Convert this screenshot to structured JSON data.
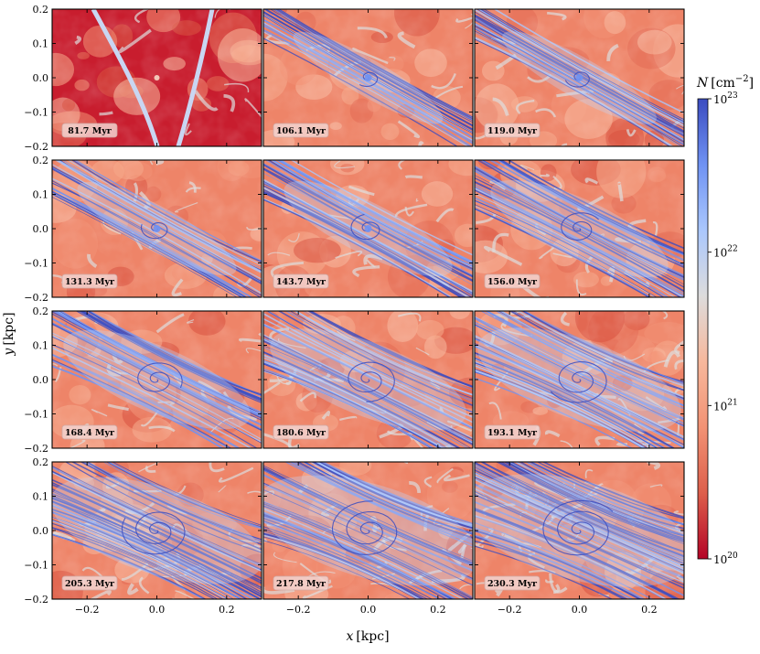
{
  "chart_data": {
    "type": "heatmap",
    "title": "",
    "layout": {
      "rows": 4,
      "cols": 3
    },
    "xlabel": {
      "var": "x",
      "unit": "[kpc]"
    },
    "ylabel": {
      "var": "y",
      "unit": "[kpc]"
    },
    "xlim": [
      -0.3,
      0.3
    ],
    "ylim": [
      -0.2,
      0.2
    ],
    "x_ticks": [
      -0.2,
      0.0,
      0.2
    ],
    "x_tick_labels": [
      "−0.2",
      "0.0",
      "0.2"
    ],
    "y_ticks": [
      -0.2,
      -0.1,
      0.0,
      0.1,
      0.2
    ],
    "y_tick_labels": [
      "−0.2",
      "−0.1",
      "0.0",
      "0.1",
      "0.2"
    ],
    "panels": [
      {
        "label": "81.7 Myr",
        "time_myr": 81.7,
        "spread": 0.0
      },
      {
        "label": "106.1 Myr",
        "time_myr": 106.1,
        "spread": 0.1
      },
      {
        "label": "119.0 Myr",
        "time_myr": 119.0,
        "spread": 0.15
      },
      {
        "label": "131.3 Myr",
        "time_myr": 131.3,
        "spread": 0.2
      },
      {
        "label": "143.7 Myr",
        "time_myr": 143.7,
        "spread": 0.3
      },
      {
        "label": "156.0 Myr",
        "time_myr": 156.0,
        "spread": 0.4
      },
      {
        "label": "168.4 Myr",
        "time_myr": 168.4,
        "spread": 0.5
      },
      {
        "label": "180.6 Myr",
        "time_myr": 180.6,
        "spread": 0.6
      },
      {
        "label": "193.1 Myr",
        "time_myr": 193.1,
        "spread": 0.68
      },
      {
        "label": "205.3 Myr",
        "time_myr": 205.3,
        "spread": 0.78
      },
      {
        "label": "217.8 Myr",
        "time_myr": 217.8,
        "spread": 0.88
      },
      {
        "label": "230.3 Myr",
        "time_myr": 230.3,
        "spread": 0.95
      }
    ],
    "colorbar": {
      "var": "N",
      "unit_base": "[cm",
      "unit_exp": "−2",
      "unit_close": "]",
      "scale": "log",
      "range": [
        1e+20,
        1e+23
      ],
      "ticks": [
        {
          "value": 1e+20,
          "base": "10",
          "exp": "20"
        },
        {
          "value": 1e+21,
          "base": "10",
          "exp": "21"
        },
        {
          "value": 1e+22,
          "base": "10",
          "exp": "22"
        },
        {
          "value": 1e+23,
          "base": "10",
          "exp": "23"
        }
      ],
      "colormap": "coolwarm_r",
      "colors": [
        "#b40426",
        "#dd5f4b",
        "#f29274",
        "#f7b89c",
        "#dddcdc",
        "#aac7fd",
        "#6f92f3",
        "#3b4cc0"
      ]
    },
    "grid": false,
    "legend": "none"
  }
}
